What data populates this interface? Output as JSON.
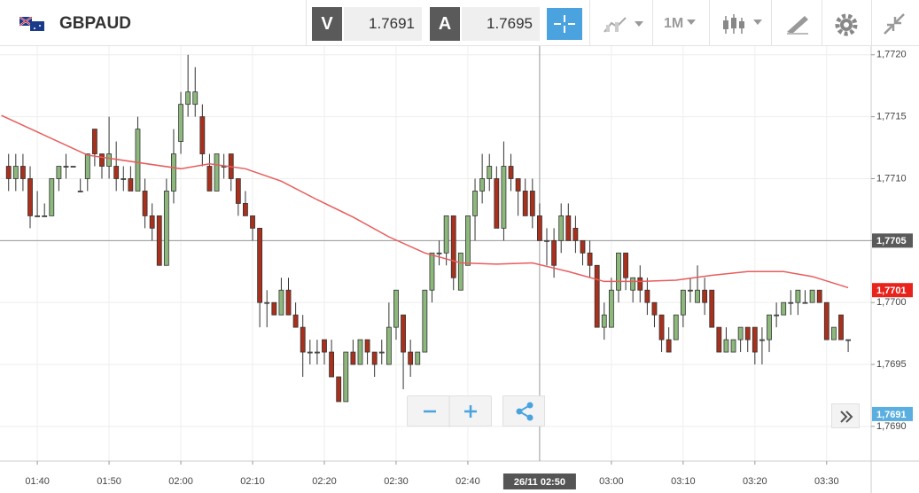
{
  "toolbar": {
    "symbol": "GBPAUD",
    "bid_label": "V",
    "bid": "1.7691",
    "ask_label": "A",
    "ask": "1.7695",
    "timeframe": "1M"
  },
  "chart_data": {
    "type": "candlestick",
    "x": [
      96,
      97,
      98,
      99,
      100,
      101,
      102,
      103,
      104,
      105,
      106,
      107,
      108,
      109,
      110,
      111,
      112,
      113,
      114,
      115,
      116,
      117,
      118,
      119,
      120,
      121,
      122,
      123,
      124,
      125,
      126,
      127,
      128,
      129,
      130,
      131,
      132,
      133,
      134,
      135,
      136,
      137,
      138,
      139,
      140,
      141,
      142,
      143,
      144,
      145,
      146,
      147,
      148,
      149,
      150,
      151,
      152,
      153,
      154,
      155,
      156,
      157,
      158,
      159,
      160,
      161,
      162,
      163,
      164,
      165,
      166,
      167,
      168,
      169,
      170,
      171,
      172,
      173,
      174,
      175,
      176,
      177,
      178,
      179,
      180,
      181,
      182,
      183,
      184,
      185,
      186,
      187,
      188,
      189,
      190,
      191,
      192,
      193,
      194,
      195,
      196,
      197,
      198,
      199,
      200,
      201,
      202,
      203,
      204,
      205,
      206,
      207,
      208,
      209,
      210,
      211,
      212,
      213
    ],
    "open": [
      1.7711,
      1.771,
      1.7711,
      1.771,
      1.7707,
      1.7707,
      1.7707,
      1.771,
      1.7711,
      1.7711,
      1.7709,
      1.771,
      1.7714,
      1.7712,
      1.7711,
      1.7711,
      1.771,
      1.771,
      1.7709,
      1.7709,
      1.7707,
      1.7707,
      1.7703,
      1.7709,
      1.7713,
      1.7716,
      1.7716,
      1.7715,
      1.7711,
      1.7709,
      1.7711,
      1.7712,
      1.771,
      1.7708,
      1.7707,
      1.7706,
      1.77,
      1.77,
      1.7699,
      1.7701,
      1.7699,
      1.7698,
      1.7696,
      1.7696,
      1.7697,
      1.7696,
      1.7694,
      1.7692,
      1.7696,
      1.7695,
      1.7697,
      1.7696,
      1.7696,
      1.7695,
      1.7698,
      1.7699,
      1.7696,
      1.7695,
      1.7696,
      1.7701,
      1.7704,
      1.7704,
      1.7707,
      1.7701,
      1.7703,
      1.7707,
      1.7709,
      1.771,
      1.771,
      1.7706,
      1.7711,
      1.771,
      1.7709,
      1.7709,
      1.7707,
      1.7705,
      1.7705,
      1.7705,
      1.7707,
      1.7706,
      1.7705,
      1.7704,
      1.7703,
      1.7698,
      1.7698,
      1.7701,
      1.7704,
      1.7701,
      1.7702,
      1.7701,
      1.77,
      1.7699,
      1.7697,
      1.7697,
      1.7699,
      1.7701,
      1.77,
      1.7701,
      1.7701,
      1.7698,
      1.7696,
      1.7696,
      1.7697,
      1.7698,
      1.7698,
      1.7697,
      1.7697,
      1.7699,
      1.7699,
      1.77,
      1.77,
      1.77,
      1.77,
      1.7701,
      1.77,
      1.7697,
      1.7699,
      1.7697
    ],
    "high": [
      1.7712,
      1.7712,
      1.7712,
      1.7711,
      1.7709,
      1.7708,
      1.771,
      1.7711,
      1.7712,
      1.7711,
      1.771,
      1.7712,
      1.7714,
      1.7712,
      1.7715,
      1.7713,
      1.7711,
      1.7711,
      1.7715,
      1.771,
      1.7708,
      1.7707,
      1.771,
      1.7714,
      1.7717,
      1.772,
      1.7719,
      1.7716,
      1.7712,
      1.7712,
      1.7712,
      1.7712,
      1.771,
      1.7709,
      1.7707,
      1.7706,
      1.7701,
      1.77,
      1.7702,
      1.7702,
      1.77,
      1.7699,
      1.7697,
      1.7697,
      1.7697,
      1.7697,
      1.7694,
      1.7696,
      1.7697,
      1.7697,
      1.7697,
      1.7696,
      1.7697,
      1.77,
      1.7701,
      1.7699,
      1.7697,
      1.7696,
      1.7701,
      1.7704,
      1.7705,
      1.7707,
      1.7707,
      1.7704,
      1.7707,
      1.771,
      1.7712,
      1.7712,
      1.7711,
      1.7713,
      1.7712,
      1.771,
      1.771,
      1.771,
      1.7708,
      1.7706,
      1.7706,
      1.7708,
      1.7708,
      1.7707,
      1.7705,
      1.7705,
      1.7703,
      1.77,
      1.7702,
      1.7704,
      1.7704,
      1.7702,
      1.7703,
      1.7702,
      1.77,
      1.7699,
      1.7698,
      1.7699,
      1.7701,
      1.7702,
      1.7703,
      1.7702,
      1.7701,
      1.7698,
      1.7698,
      1.7697,
      1.7698,
      1.7698,
      1.7698,
      1.7698,
      1.7699,
      1.77,
      1.77,
      1.7701,
      1.7701,
      1.7701,
      1.7701,
      1.7701,
      1.77,
      1.7698,
      1.7699,
      1.7697
    ],
    "low": [
      1.7709,
      1.7709,
      1.7709,
      1.7706,
      1.7707,
      1.7707,
      1.7707,
      1.7709,
      1.771,
      1.7711,
      1.7709,
      1.7709,
      1.7711,
      1.771,
      1.771,
      1.7709,
      1.7709,
      1.7709,
      1.7709,
      1.7706,
      1.7705,
      1.7703,
      1.7703,
      1.7708,
      1.7712,
      1.7715,
      1.7715,
      1.7711,
      1.7709,
      1.7709,
      1.771,
      1.7709,
      1.7707,
      1.7707,
      1.7705,
      1.7698,
      1.7698,
      1.7699,
      1.7699,
      1.7699,
      1.7698,
      1.7694,
      1.7695,
      1.7695,
      1.7695,
      1.7694,
      1.7692,
      1.7692,
      1.7695,
      1.7695,
      1.7695,
      1.7694,
      1.7695,
      1.7695,
      1.7697,
      1.7693,
      1.7694,
      1.7695,
      1.7696,
      1.77,
      1.7703,
      1.7703,
      1.7701,
      1.7701,
      1.7703,
      1.7705,
      1.7708,
      1.7709,
      1.7706,
      1.7705,
      1.7709,
      1.7707,
      1.7707,
      1.7706,
      1.7705,
      1.7703,
      1.7702,
      1.7704,
      1.7705,
      1.7704,
      1.7703,
      1.7702,
      1.7698,
      1.7697,
      1.7698,
      1.77,
      1.7701,
      1.77,
      1.77,
      1.7699,
      1.7698,
      1.7696,
      1.7696,
      1.7697,
      1.7698,
      1.77,
      1.77,
      1.7699,
      1.7698,
      1.7696,
      1.7696,
      1.7696,
      1.7696,
      1.7696,
      1.7695,
      1.7695,
      1.7696,
      1.7698,
      1.7699,
      1.7699,
      1.7699,
      1.77,
      1.77,
      1.77,
      1.7697,
      1.7697,
      1.7697,
      1.7696
    ],
    "close": [
      1.771,
      1.7711,
      1.771,
      1.7707,
      1.7707,
      1.7707,
      1.771,
      1.7711,
      1.7711,
      1.7711,
      1.7709,
      1.7712,
      1.7712,
      1.7711,
      1.7712,
      1.771,
      1.771,
      1.7709,
      1.7714,
      1.7707,
      1.7706,
      1.7703,
      1.7709,
      1.7712,
      1.7716,
      1.7717,
      1.7717,
      1.7712,
      1.7709,
      1.7712,
      1.7711,
      1.771,
      1.7708,
      1.7707,
      1.7706,
      1.77,
      1.77,
      1.7699,
      1.7701,
      1.7699,
      1.7698,
      1.7696,
      1.7696,
      1.7696,
      1.7696,
      1.7694,
      1.7692,
      1.7696,
      1.7695,
      1.7697,
      1.7696,
      1.7695,
      1.7696,
      1.7698,
      1.7701,
      1.7696,
      1.7695,
      1.7696,
      1.7701,
      1.7704,
      1.7704,
      1.7707,
      1.7702,
      1.7704,
      1.7707,
      1.7709,
      1.771,
      1.7711,
      1.7706,
      1.7711,
      1.771,
      1.7709,
      1.7707,
      1.7707,
      1.7705,
      1.7705,
      1.7703,
      1.7707,
      1.7705,
      1.7705,
      1.7704,
      1.7703,
      1.7698,
      1.7699,
      1.7701,
      1.7704,
      1.7702,
      1.7702,
      1.7701,
      1.77,
      1.7699,
      1.7697,
      1.7696,
      1.7699,
      1.7701,
      1.7701,
      1.7701,
      1.77,
      1.7698,
      1.7696,
      1.7697,
      1.7697,
      1.7698,
      1.7697,
      1.7696,
      1.7697,
      1.7699,
      1.7699,
      1.77,
      1.77,
      1.7701,
      1.77,
      1.7701,
      1.77,
      1.7697,
      1.7698,
      1.7697,
      1.7697
    ],
    "up_color": "#8db87c",
    "down_color": "#a8301c",
    "overlay": {
      "type": "line",
      "color": "#e85c5c",
      "x": [
        95,
        107,
        120,
        124,
        129,
        134,
        139,
        144,
        149,
        154,
        159,
        164,
        169,
        174,
        179,
        184,
        189,
        194,
        199,
        204,
        208,
        213
      ],
      "values": [
        1.77151,
        1.77119,
        1.77108,
        1.77112,
        1.77108,
        1.77098,
        1.77083,
        1.77069,
        1.77053,
        1.7704,
        1.77032,
        1.77031,
        1.77032,
        1.77025,
        1.77017,
        1.77017,
        1.77018,
        1.77022,
        1.77025,
        1.77025,
        1.77021,
        1.77012
      ]
    },
    "xlim": [
      94.8,
      216.2
    ],
    "ylim": [
      1.76872,
      1.77207
    ],
    "xticks": [
      {
        "value": 100,
        "label": "01:40"
      },
      {
        "value": 110,
        "label": "01:50"
      },
      {
        "value": 120,
        "label": "02:00"
      },
      {
        "value": 130,
        "label": "02:10"
      },
      {
        "value": 140,
        "label": "02:20"
      },
      {
        "value": 150,
        "label": "02:30"
      },
      {
        "value": 160,
        "label": "02:40"
      },
      {
        "value": 180,
        "label": "03:00"
      },
      {
        "value": 190,
        "label": "03:10"
      },
      {
        "value": 200,
        "label": "03:20"
      },
      {
        "value": 210,
        "label": "03:30"
      }
    ],
    "yticks": [
      {
        "value": 1.769,
        "label": "1,7690"
      },
      {
        "value": 1.7695,
        "label": "1,7695"
      },
      {
        "value": 1.77,
        "label": "1,7700"
      },
      {
        "value": 1.7705,
        "label": "1,7705"
      },
      {
        "value": 1.771,
        "label": "1,7710"
      },
      {
        "value": 1.7715,
        "label": "1,7715"
      },
      {
        "value": 1.772,
        "label": "1,7720"
      }
    ],
    "grid": true,
    "crosshair": {
      "x": {
        "value": 170,
        "label": "26/11 02:50"
      },
      "y": {
        "value": 1.7705,
        "label": "1,7705"
      }
    },
    "price_tags": [
      {
        "value": 1.7701,
        "label": "1,7701",
        "color": "#e8231c"
      },
      {
        "value": 1.7691,
        "label": "1,7691",
        "color": "#5aaee0"
      }
    ]
  }
}
